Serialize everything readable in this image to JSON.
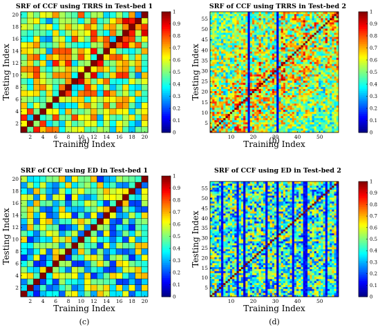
{
  "chart_data": [
    {
      "type": "heatmap",
      "title": "SRF of CCF using TRRS in Test-bed 1",
      "xlabel": "Training Index",
      "ylabel": "Testing Index",
      "caption": "(a)",
      "n": 20,
      "diagonal": 1,
      "offdiag_character": "high values concentrated near diagonal and upper-right block",
      "xticks": [
        "2",
        "4",
        "6",
        "8",
        "10",
        "12",
        "14",
        "16",
        "18",
        "20"
      ],
      "yticks": [
        "2",
        "4",
        "6",
        "8",
        "10",
        "12",
        "14",
        "16",
        "18",
        "20"
      ],
      "colorbar": {
        "min": 0,
        "max": 1,
        "ticks": [
          "0",
          "0.1",
          "0.2",
          "0.3",
          "0.4",
          "0.5",
          "0.6",
          "0.7",
          "0.8",
          "0.9",
          "1"
        ]
      },
      "seed": 11,
      "style": "trrs"
    },
    {
      "type": "heatmap",
      "title": "SRF of CCF using TRRS in Test-bed 2",
      "xlabel": "Training Index",
      "ylabel": "Testing Index",
      "caption": "(b)",
      "n": 58,
      "diagonal": 1,
      "xticks": [
        "10",
        "20",
        "30",
        "40",
        "50"
      ],
      "yticks": [
        "5",
        "10",
        "15",
        "20",
        "25",
        "30",
        "35",
        "40",
        "45",
        "50",
        "55"
      ],
      "colorbar": {
        "min": 0,
        "max": 1,
        "ticks": [
          "0",
          "0.1",
          "0.2",
          "0.3",
          "0.4",
          "0.5",
          "0.6",
          "0.7",
          "0.8",
          "0.9",
          "1"
        ]
      },
      "seed": 23,
      "style": "trrs"
    },
    {
      "type": "heatmap",
      "title": "SRF of CCF using ED in Test-bed 1",
      "xlabel": "Training Index",
      "ylabel": "Testing Index",
      "caption": "(c)",
      "n": 20,
      "diagonal": 1,
      "xticks": [
        "2",
        "4",
        "6",
        "8",
        "10",
        "12",
        "14",
        "16",
        "18",
        "20"
      ],
      "yticks": [
        "2",
        "4",
        "6",
        "8",
        "10",
        "12",
        "14",
        "16",
        "18",
        "20"
      ],
      "colorbar": {
        "min": 0,
        "max": 1,
        "ticks": [
          "0",
          "0.1",
          "0.2",
          "0.3",
          "0.4",
          "0.5",
          "0.6",
          "0.7",
          "0.8",
          "0.9",
          "1"
        ]
      },
      "seed": 37,
      "style": "ed"
    },
    {
      "type": "heatmap",
      "title": "SRF of CCF using ED in Test-bed 2",
      "xlabel": "Training Index",
      "ylabel": "Testing Index",
      "caption": "(d)",
      "n": 58,
      "diagonal": 1,
      "xticks": [
        "10",
        "20",
        "30",
        "40",
        "50"
      ],
      "yticks": [
        "5",
        "10",
        "15",
        "20",
        "25",
        "30",
        "35",
        "40",
        "45",
        "50",
        "55"
      ],
      "colorbar": {
        "min": 0,
        "max": 1,
        "ticks": [
          "0",
          "0.1",
          "0.2",
          "0.3",
          "0.4",
          "0.5",
          "0.6",
          "0.7",
          "0.8",
          "0.9",
          "1"
        ]
      },
      "seed": 51,
      "style": "ed"
    }
  ]
}
